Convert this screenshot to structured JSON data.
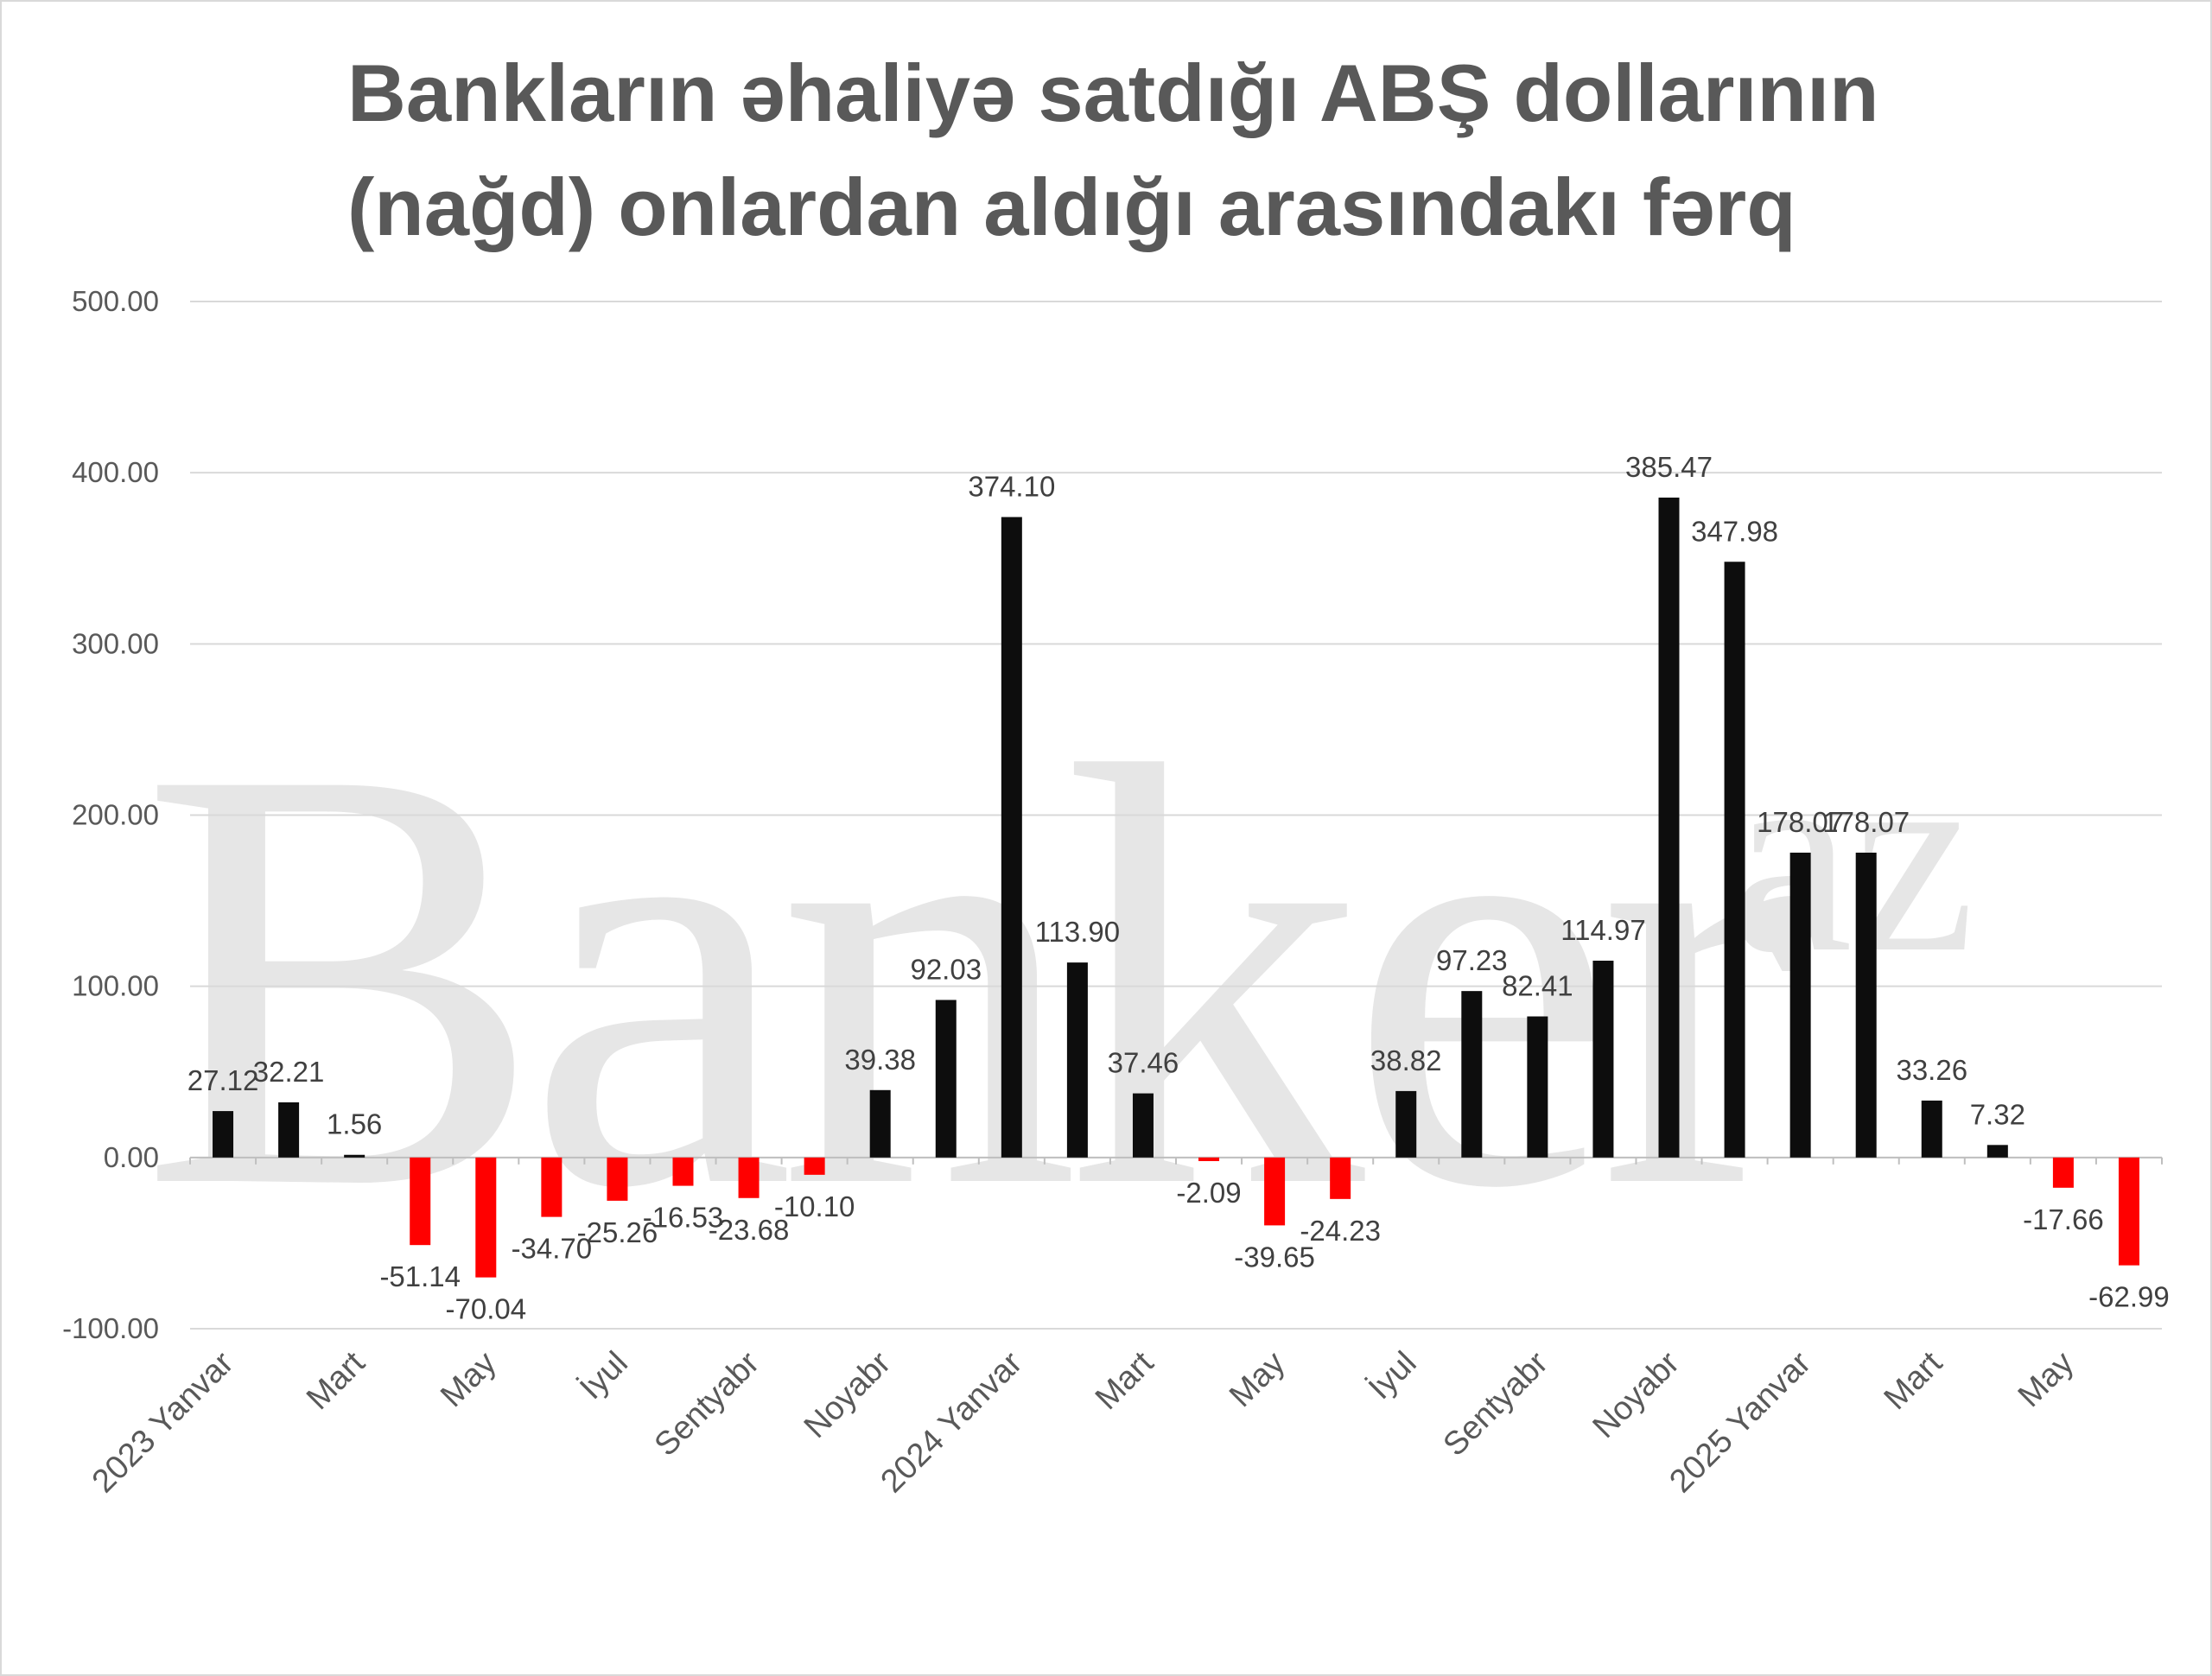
{
  "chart_data": {
    "type": "bar",
    "title": [
      "Bankların əhaliyə satdığı ABŞ dollarının",
      "(nağd) onlardan aldığı arasındakı fərq"
    ],
    "watermark": "Banker",
    "watermark_suffix": "az",
    "xlabel": "",
    "ylabel": "",
    "ylim": [
      -100,
      500
    ],
    "yticks": [
      "500.00",
      "400.00",
      "300.00",
      "200.00",
      "100.00",
      "0.00",
      "-100.00"
    ],
    "grid": true,
    "legend": "none",
    "colors": {
      "positive": "#0d0d0d",
      "negative": "#ff0000",
      "grid": "#d9d9d9",
      "text": "#595959"
    },
    "tick_labels": [
      {
        "index": 0,
        "label": "2023 Yanvar"
      },
      {
        "index": 2,
        "label": "Mart"
      },
      {
        "index": 4,
        "label": "May"
      },
      {
        "index": 6,
        "label": "İyul"
      },
      {
        "index": 8,
        "label": "Sentyabr"
      },
      {
        "index": 10,
        "label": "Noyabr"
      },
      {
        "index": 12,
        "label": "2024 Yanvar"
      },
      {
        "index": 14,
        "label": "Mart"
      },
      {
        "index": 16,
        "label": "May"
      },
      {
        "index": 18,
        "label": "İyul"
      },
      {
        "index": 20,
        "label": "Sentyabr"
      },
      {
        "index": 22,
        "label": "Noyabr"
      },
      {
        "index": 24,
        "label": "2025 Yanvar"
      },
      {
        "index": 26,
        "label": "Mart"
      },
      {
        "index": 28,
        "label": "May"
      }
    ],
    "values": [
      27.12,
      32.21,
      1.56,
      -51.14,
      -70.04,
      -34.7,
      -25.26,
      -16.53,
      -23.68,
      -10.1,
      39.38,
      92.03,
      374.1,
      113.9,
      37.46,
      -2.09,
      -39.65,
      -24.23,
      38.82,
      97.23,
      82.41,
      114.97,
      385.47,
      347.98,
      178.07,
      178.07,
      33.26,
      7.32,
      -17.66,
      -62.99
    ],
    "data_labels": [
      "27.12",
      "32.21",
      "1.56",
      "-51.14",
      "-70.04",
      "-34.70",
      "-25.26",
      "-16.53",
      "-23.68",
      "-10.10",
      "39.38",
      "92.03",
      "374.10",
      "113.90",
      "37.46",
      "-2.09",
      "-39.65",
      "-24.23",
      "38.82",
      "97.23",
      "82.41",
      "114.97",
      "385.47",
      "347.98",
      "178.07",
      "178.07",
      "33.26",
      "7.32",
      "-17.66",
      "-62.99"
    ]
  }
}
